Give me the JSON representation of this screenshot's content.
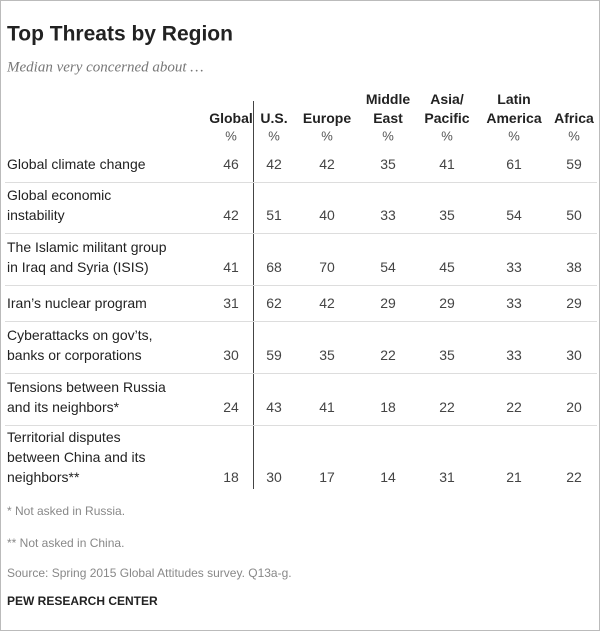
{
  "title": "Top Threats by Region",
  "subtitle": "Median very concerned about …",
  "table": {
    "columns": [
      {
        "name": [
          "Global"
        ],
        "unit": "%"
      },
      {
        "name": [
          "U.S."
        ],
        "unit": "%"
      },
      {
        "name": [
          "Europe"
        ],
        "unit": "%"
      },
      {
        "name": [
          "Middle",
          "East"
        ],
        "unit": "%"
      },
      {
        "name": [
          "Asia/",
          "Pacific"
        ],
        "unit": "%"
      },
      {
        "name": [
          "Latin",
          "America"
        ],
        "unit": "%"
      },
      {
        "name": [
          "Africa"
        ],
        "unit": "%"
      }
    ],
    "rows": [
      {
        "label": [
          "Global climate change"
        ],
        "values": [
          46,
          42,
          42,
          35,
          41,
          61,
          59
        ]
      },
      {
        "label": [
          "Global economic",
          "instability"
        ],
        "values": [
          42,
          51,
          40,
          33,
          35,
          54,
          50
        ]
      },
      {
        "label": [
          "The Islamic militant group",
          "in Iraq and Syria (ISIS)"
        ],
        "values": [
          41,
          68,
          70,
          54,
          45,
          33,
          38
        ]
      },
      {
        "label": [
          "Iran’s nuclear program"
        ],
        "values": [
          31,
          62,
          42,
          29,
          29,
          33,
          29
        ]
      },
      {
        "label": [
          "Cyberattacks on gov’ts,",
          "banks or corporations"
        ],
        "values": [
          30,
          59,
          35,
          22,
          35,
          33,
          30
        ]
      },
      {
        "label": [
          "Tensions between Russia",
          "and its neighbors*"
        ],
        "values": [
          24,
          43,
          41,
          18,
          22,
          22,
          20
        ]
      },
      {
        "label": [
          "Territorial disputes",
          "between China and its",
          "neighbors**"
        ],
        "values": [
          18,
          30,
          17,
          14,
          31,
          21,
          22
        ]
      }
    ]
  },
  "notes": [
    "* Not asked in Russia.",
    "** Not asked in China.",
    "Source: Spring 2015 Global Attitudes survey. Q13a-g."
  ],
  "footer": "PEW RESEARCH CENTER"
}
